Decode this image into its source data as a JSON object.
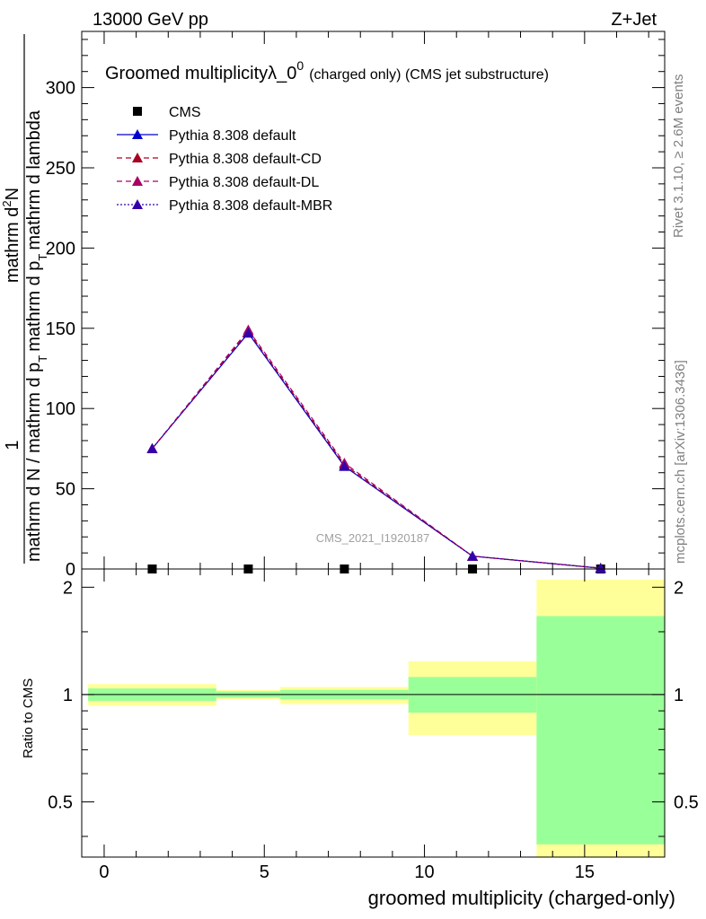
{
  "header": {
    "energy_label": "13000 GeV pp",
    "process_label": "Z+Jet",
    "rivet_label": "Rivet 3.1.10, ≥ 2.6M events",
    "mcplots_label": "mcplots.cern.ch [arXiv:1306.3436]",
    "analysis_label": "CMS_2021_I1920187"
  },
  "chart_data": [
    {
      "type": "line",
      "title_main": "Groomed multiplicityλ_0",
      "title_sup": "0",
      "title_suffix": "(charged only) (CMS jet substructure)",
      "ylabel_num_1": "1",
      "ylabel_den_1": "mathrm d N / mathrm d p",
      "ylabel_den_sub": "T",
      "ylabel_den_2": "mathrm d p",
      "ylabel_num_2": "mathrm d",
      "ylabel_num_sup": "2",
      "ylabel_num_3": "N",
      "ylabel_rest": "mathrm d lambda",
      "xlim": [
        -0.7,
        17.5
      ],
      "ylim": [
        0,
        335
      ],
      "yticks": [
        0,
        50,
        100,
        150,
        200,
        250,
        300
      ],
      "ytick_labels": [
        "0",
        "50",
        "100",
        "150",
        "200",
        "250",
        "300"
      ],
      "legend_position": "top-left",
      "series": [
        {
          "name": "CMS",
          "color": "#000000",
          "style": "marker-square",
          "x": [
            1.5,
            4.5,
            7.5,
            11.5,
            15.5
          ],
          "y": [
            0,
            0,
            0,
            0,
            0
          ]
        },
        {
          "name": "Pythia 8.308 default",
          "color": "#0000cc",
          "style": "solid",
          "x": [
            1.5,
            4.5,
            7.5,
            11.5,
            15.5
          ],
          "y": [
            75,
            147,
            64,
            8,
            0.5
          ]
        },
        {
          "name": "Pythia 8.308 default-CD",
          "color": "#aa0022",
          "style": "dashed",
          "x": [
            1.5,
            4.5,
            7.5,
            11.5,
            15.5
          ],
          "y": [
            75,
            148,
            65,
            8,
            0.5
          ]
        },
        {
          "name": "Pythia 8.308 default-DL",
          "color": "#aa0066",
          "style": "dashed",
          "x": [
            1.5,
            4.5,
            7.5,
            11.5,
            15.5
          ],
          "y": [
            75,
            149,
            66,
            8,
            0.5
          ]
        },
        {
          "name": "Pythia 8.308 default-MBR",
          "color": "#3300aa",
          "style": "dotted",
          "x": [
            1.5,
            4.5,
            7.5,
            11.5,
            15.5
          ],
          "y": [
            75,
            147,
            64,
            8,
            0.5
          ]
        }
      ]
    },
    {
      "type": "area",
      "ylabel": "Ratio to CMS",
      "xlabel": "groomed multiplicity (charged-only)",
      "xlim": [
        -0.7,
        17.5
      ],
      "ylim": [
        0.35,
        2.25
      ],
      "yticks": [
        0.5,
        1,
        2
      ],
      "ytick_labels": [
        "0.5",
        "1",
        "2"
      ],
      "xticks": [
        0,
        5,
        10,
        15
      ],
      "xtick_labels": [
        "0",
        "5",
        "10",
        "15"
      ],
      "reference_line": 1,
      "bands": [
        {
          "x_low": -0.5,
          "x_high": 3.5,
          "green_low": 0.96,
          "green_high": 1.04,
          "yellow_low": 0.93,
          "yellow_high": 1.07
        },
        {
          "x_low": 3.5,
          "x_high": 5.5,
          "green_low": 0.98,
          "green_high": 1.02,
          "yellow_low": 0.97,
          "yellow_high": 1.03
        },
        {
          "x_low": 5.5,
          "x_high": 9.5,
          "green_low": 0.97,
          "green_high": 1.03,
          "yellow_low": 0.94,
          "yellow_high": 1.05
        },
        {
          "x_low": 9.5,
          "x_high": 13.5,
          "green_low": 0.89,
          "green_high": 1.12,
          "yellow_low": 0.77,
          "yellow_high": 1.24
        },
        {
          "x_low": 13.5,
          "x_high": 17.5,
          "green_low": 0.38,
          "green_high": 1.66,
          "yellow_low": 0.35,
          "yellow_high": 2.1
        }
      ]
    }
  ],
  "colors": {
    "band_green": "#99ff99",
    "band_yellow": "#ffff99"
  }
}
